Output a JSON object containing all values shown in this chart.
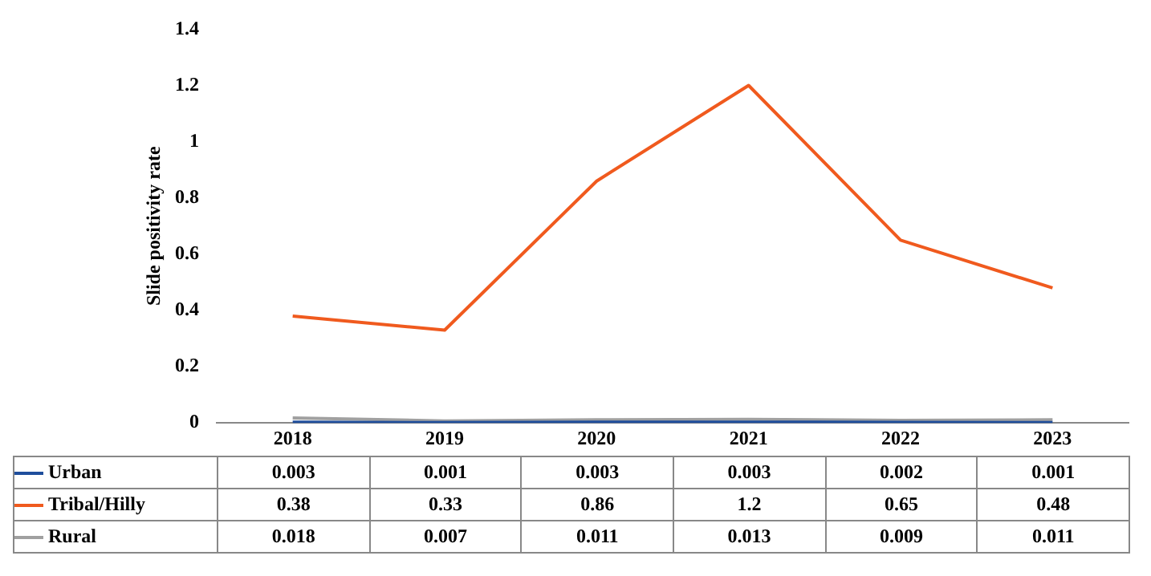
{
  "chart_data": {
    "type": "line",
    "ylabel": "Slide positivity rate",
    "categories": [
      "2018",
      "2019",
      "2020",
      "2021",
      "2022",
      "2023"
    ],
    "series": [
      {
        "name": "Urban",
        "color": "#1f4e9c",
        "values": [
          0.003,
          0.001,
          0.003,
          0.003,
          0.002,
          0.001
        ]
      },
      {
        "name": "Tribal/Hilly",
        "color": "#f05a1e",
        "values": [
          0.38,
          0.33,
          0.86,
          1.2,
          0.65,
          0.48
        ]
      },
      {
        "name": "Rural",
        "color": "#a0a0a0",
        "values": [
          0.018,
          0.007,
          0.011,
          0.013,
          0.009,
          0.011
        ]
      }
    ],
    "ylim": [
      0,
      1.4
    ],
    "yticks": [
      0,
      0.2,
      0.4,
      0.6,
      0.8,
      1,
      1.2,
      1.4
    ],
    "grid": false,
    "legend": "bottom",
    "marker": "none",
    "line_style": "solid",
    "data_labels": true
  }
}
